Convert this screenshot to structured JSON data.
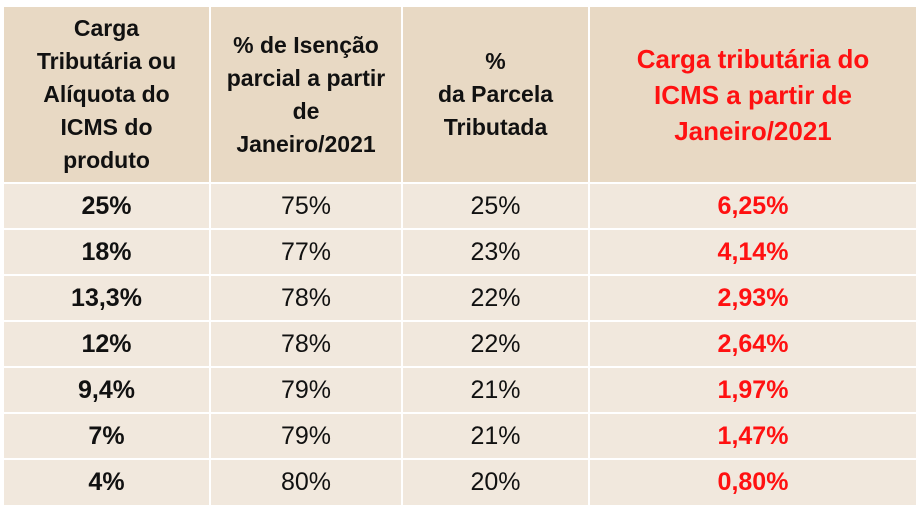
{
  "chart_data": {
    "type": "table",
    "columns": [
      "Carga\nTributária ou\nAlíquota do\nICMS do\nproduto",
      "%  de Isenção\nparcial a partir\nde\nJaneiro/2021",
      "%\nda Parcela\nTributada",
      "Carga tributária do\nICMS a partir de\nJaneiro/2021"
    ],
    "rows": [
      [
        "25%",
        "75%",
        "25%",
        "6,25%"
      ],
      [
        "18%",
        "77%",
        "23%",
        "4,14%"
      ],
      [
        "13,3%",
        "78%",
        "22%",
        "2,93%"
      ],
      [
        "12%",
        "78%",
        "22%",
        "2,64%"
      ],
      [
        "9,4%",
        "79%",
        "21%",
        "1,97%"
      ],
      [
        "7%",
        "79%",
        "21%",
        "1,47%"
      ],
      [
        "4%",
        "80%",
        "20%",
        "0,80%"
      ]
    ]
  },
  "colors": {
    "header_bg": "#e8d9c4",
    "row_bg": "#f1e8dd",
    "accent_red": "#ff1111",
    "text": "#111111"
  }
}
